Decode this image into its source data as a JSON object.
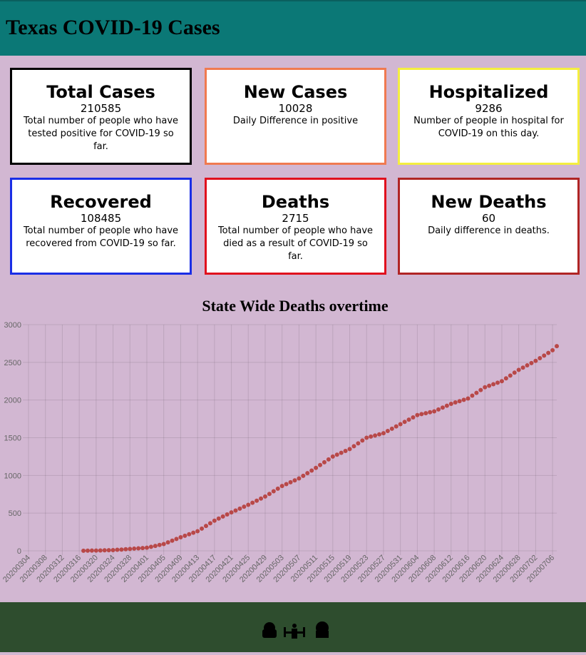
{
  "header": {
    "title": "Texas COVID-19 Cases"
  },
  "cards": [
    {
      "title": "Total Cases",
      "value": 210585,
      "description": "Total number of people who have tested positive for COVID-19 so far.",
      "color": "#000000"
    },
    {
      "title": "New Cases",
      "value": 10028,
      "description": "Daily Difference in positive",
      "color": "#f07a50"
    },
    {
      "title": "Hospitalized",
      "value": 9286,
      "description": "Number of people in hospital for COVID-19 on this day.",
      "color": "#f4ee40"
    },
    {
      "title": "Recovered",
      "value": 108485,
      "description": "Total number of people who have recovered from COVID-19 so far.",
      "color": "#1a2ee6"
    },
    {
      "title": "Deaths",
      "value": 2715,
      "description": "Total number of people who have died as a result of COVID-19 so far.",
      "color": "#e0101e"
    },
    {
      "title": "New Deaths",
      "value": 60,
      "description": "Daily difference in deaths.",
      "color": "#b02525"
    }
  ],
  "chart_data": {
    "type": "line",
    "title": "State Wide Deaths overtime",
    "color": "#b84848",
    "grid": true,
    "ylim": [
      0,
      3000
    ],
    "yticks": [
      0,
      500,
      1000,
      1500,
      2000,
      2500,
      3000
    ],
    "categories": [
      "20200304",
      null,
      null,
      null,
      "20200308",
      null,
      null,
      null,
      "20200312",
      null,
      null,
      null,
      "20200316",
      null,
      null,
      null,
      "20200320",
      null,
      null,
      null,
      "20200324",
      null,
      null,
      null,
      "20200328",
      null,
      null,
      null,
      "20200401",
      null,
      null,
      null,
      "20200405",
      null,
      null,
      null,
      "20200409",
      null,
      null,
      null,
      "20200413",
      null,
      null,
      null,
      "20200417",
      null,
      null,
      null,
      "20200421",
      null,
      null,
      null,
      "20200425",
      null,
      null,
      null,
      "20200429",
      null,
      null,
      null,
      "20200503",
      null,
      null,
      null,
      "20200507",
      null,
      null,
      null,
      "20200511",
      null,
      null,
      null,
      "20200515",
      null,
      null,
      null,
      "20200519",
      null,
      null,
      null,
      "20200523",
      null,
      null,
      null,
      "20200527",
      null,
      null,
      null,
      "20200531",
      null,
      null,
      null,
      "20200604",
      null,
      null,
      null,
      "20200608",
      null,
      null,
      null,
      "20200612",
      null,
      null,
      null,
      "20200616",
      null,
      null,
      null,
      "20200620",
      null,
      null,
      null,
      "20200624",
      null,
      null,
      null,
      "20200628",
      null,
      null,
      null,
      "20200702",
      null,
      null,
      null,
      "20200706",
      null
    ],
    "values": [
      null,
      null,
      null,
      null,
      null,
      null,
      null,
      null,
      null,
      null,
      null,
      null,
      null,
      1,
      2,
      3,
      4,
      5,
      7,
      8,
      10,
      14,
      17,
      21,
      25,
      29,
      33,
      37,
      41,
      53,
      65,
      78,
      90,
      112,
      135,
      157,
      180,
      200,
      220,
      240,
      260,
      295,
      330,
      365,
      400,
      428,
      455,
      483,
      510,
      535,
      560,
      585,
      610,
      638,
      665,
      693,
      720,
      755,
      790,
      825,
      860,
      885,
      910,
      935,
      960,
      995,
      1030,
      1065,
      1100,
      1138,
      1175,
      1213,
      1250,
      1275,
      1300,
      1325,
      1350,
      1388,
      1425,
      1463,
      1500,
      1515,
      1530,
      1545,
      1560,
      1590,
      1620,
      1650,
      1680,
      1710,
      1740,
      1770,
      1800,
      1813,
      1825,
      1838,
      1850,
      1875,
      1900,
      1925,
      1950,
      1968,
      1985,
      2003,
      2020,
      2058,
      2095,
      2133,
      2170,
      2190,
      2210,
      2230,
      2250,
      2288,
      2325,
      2363,
      2400,
      2430,
      2460,
      2490,
      2520,
      2555,
      2590,
      2625,
      2660,
      2715
    ]
  }
}
